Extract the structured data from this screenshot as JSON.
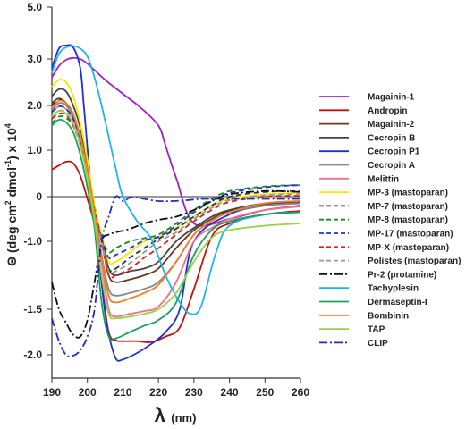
{
  "chart_data": {
    "type": "line",
    "xlabel_symbol": "λ",
    "xlabel_unit": "(nm)",
    "ylabel_base": "Θ (deg cm",
    "ylabel_sup1": "2",
    "ylabel_mid": " dmol",
    "ylabel_sup2": "-1",
    "ylabel_tail": ") x 10",
    "ylabel_sup3": "4",
    "xlim": [
      190,
      260
    ],
    "x_ticks": [
      190,
      200,
      210,
      220,
      230,
      240,
      250,
      260
    ],
    "y_ticks": [
      {
        "label": "5.0",
        "value": 5.0
      },
      {
        "label": "3.0",
        "value": 3.0
      },
      {
        "label": "2.0",
        "value": 2.0
      },
      {
        "label": "1.0",
        "value": 1.0
      },
      {
        "label": "0",
        "value": 0
      },
      {
        "label": "-1.0",
        "value": -1.0
      },
      {
        "label": "-1.5",
        "value": -1.5
      },
      {
        "label": "-2.0",
        "value": -2.0
      }
    ],
    "series": [
      {
        "name": "Magainin-1",
        "color": "#a020c8",
        "dash": "solid",
        "x": [
          190,
          192,
          194,
          196,
          198,
          200,
          205,
          210,
          215,
          220,
          222,
          225,
          230,
          240,
          250,
          260
        ],
        "y": [
          2.6,
          2.85,
          2.98,
          3.04,
          3.0,
          2.9,
          2.55,
          2.25,
          1.95,
          1.55,
          1.1,
          0.4,
          -0.6,
          -0.5,
          -0.3,
          -0.2
        ]
      },
      {
        "name": "Andropin",
        "color": "#c01010",
        "dash": "solid",
        "x": [
          190,
          192,
          194,
          196,
          198,
          200,
          202,
          204,
          206,
          208,
          210,
          214,
          218,
          222,
          226,
          230,
          235,
          240,
          250,
          260
        ],
        "y": [
          0.58,
          0.67,
          0.75,
          0.72,
          0.45,
          -0.05,
          -0.65,
          -1.3,
          -1.75,
          -1.84,
          -1.85,
          -1.85,
          -1.86,
          -1.8,
          -1.7,
          -1.35,
          -0.9,
          -0.6,
          -0.4,
          -0.32
        ]
      },
      {
        "name": "Magainin-2",
        "color": "#6b3a1e",
        "dash": "solid",
        "x": [
          190,
          192,
          194,
          196,
          198,
          200,
          202,
          204,
          206,
          208,
          212,
          216,
          220,
          225,
          230,
          235,
          240,
          250,
          260
        ],
        "y": [
          2.05,
          2.15,
          2.05,
          1.8,
          1.3,
          0.6,
          -0.3,
          -1.0,
          -1.25,
          -1.3,
          -1.28,
          -1.25,
          -1.2,
          -1.05,
          -0.75,
          -0.5,
          -0.32,
          -0.18,
          -0.12
        ]
      },
      {
        "name": "Cecropin B",
        "color": "#444444",
        "dash": "solid",
        "x": [
          190,
          192,
          194,
          196,
          198,
          200,
          202,
          204,
          206,
          208,
          212,
          216,
          220,
          225,
          230,
          235,
          240,
          250,
          260
        ],
        "y": [
          2.2,
          2.35,
          2.3,
          2.0,
          1.5,
          0.7,
          -0.2,
          -0.9,
          -1.2,
          -1.25,
          -1.22,
          -1.2,
          -1.15,
          -1.0,
          -0.7,
          -0.45,
          -0.3,
          -0.15,
          -0.1
        ]
      },
      {
        "name": "Cecropin P1",
        "color": "#1f2fd0",
        "dash": "solid",
        "x": [
          190,
          192,
          194,
          196,
          198,
          199,
          200,
          201,
          202,
          203,
          204,
          205,
          206,
          208,
          210,
          214,
          218,
          222,
          226,
          230,
          240,
          250,
          260
        ],
        "y": [
          2.8,
          3.4,
          3.52,
          3.45,
          2.8,
          2.0,
          1.05,
          0.2,
          -0.5,
          -1.0,
          -1.3,
          -1.55,
          -1.78,
          -2.08,
          -2.1,
          -1.98,
          -1.88,
          -1.75,
          -1.5,
          -1.0,
          -0.4,
          -0.2,
          -0.15
        ]
      },
      {
        "name": "Cecropin A",
        "color": "#888888",
        "dash": "solid",
        "x": [
          190,
          192,
          194,
          196,
          198,
          200,
          202,
          204,
          206,
          208,
          212,
          216,
          220,
          225,
          230,
          235,
          240,
          250,
          260
        ],
        "y": [
          1.9,
          2.05,
          2.0,
          1.75,
          1.25,
          0.55,
          -0.4,
          -1.1,
          -1.35,
          -1.4,
          -1.38,
          -1.35,
          -1.3,
          -1.15,
          -0.85,
          -0.55,
          -0.35,
          -0.2,
          -0.15
        ]
      },
      {
        "name": "Melittin",
        "color": "#f0708a",
        "dash": "solid",
        "x": [
          190,
          192,
          194,
          196,
          198,
          200,
          202,
          204,
          206,
          208,
          212,
          216,
          220,
          225,
          230,
          235,
          240,
          250,
          260
        ],
        "y": [
          1.85,
          1.98,
          1.92,
          1.7,
          1.2,
          0.5,
          -0.45,
          -1.15,
          -1.5,
          -1.58,
          -1.55,
          -1.52,
          -1.48,
          -1.3,
          -1.0,
          -0.7,
          -0.5,
          -0.3,
          -0.22
        ]
      },
      {
        "name": "MP-3 (mastoparan)",
        "color": "#f2ea00",
        "dash": "solid",
        "x": [
          190,
          192,
          194,
          196,
          198,
          200,
          202,
          204,
          206,
          208,
          212,
          216,
          220,
          225,
          230,
          235,
          240,
          250,
          260
        ],
        "y": [
          2.4,
          2.55,
          2.5,
          2.2,
          1.6,
          0.8,
          -0.2,
          -0.85,
          -1.15,
          -1.15,
          -1.08,
          -1.0,
          -0.9,
          -0.7,
          -0.45,
          -0.2,
          -0.05,
          0.05,
          0.08
        ]
      },
      {
        "name": "MP-7 (mastoparan)",
        "color": "#333333",
        "dash": "dashed",
        "x": [
          190,
          192,
          194,
          196,
          198,
          200,
          202,
          204,
          206,
          208,
          212,
          216,
          220,
          225,
          230,
          235,
          240,
          250,
          260
        ],
        "y": [
          2.0,
          2.12,
          2.05,
          1.8,
          1.3,
          0.6,
          -0.3,
          -0.95,
          -1.2,
          -1.2,
          -1.12,
          -1.05,
          -0.95,
          -0.72,
          -0.45,
          -0.2,
          0.0,
          0.1,
          0.12
        ]
      },
      {
        "name": "MP-8 (mastoparan)",
        "color": "#1a8a1a",
        "dash": "dashed",
        "x": [
          190,
          192,
          194,
          196,
          198,
          200,
          202,
          204,
          206,
          208,
          212,
          216,
          220,
          225,
          230,
          235,
          240,
          250,
          260
        ],
        "y": [
          1.6,
          1.75,
          1.72,
          1.55,
          1.15,
          0.5,
          -0.4,
          -0.95,
          -1.08,
          -1.05,
          -1.0,
          -0.93,
          -0.85,
          -0.6,
          -0.3,
          -0.05,
          0.12,
          0.22,
          0.25
        ]
      },
      {
        "name": "MP-17 (mastoparan)",
        "color": "#2030d8",
        "dash": "dashed",
        "x": [
          190,
          192,
          194,
          196,
          198,
          200,
          202,
          204,
          206,
          208,
          212,
          216,
          220,
          225,
          230,
          235,
          240,
          250,
          260
        ],
        "y": [
          1.85,
          1.98,
          1.92,
          1.7,
          1.25,
          0.55,
          -0.35,
          -0.95,
          -1.12,
          -1.1,
          -1.05,
          -0.98,
          -0.9,
          -0.65,
          -0.35,
          -0.1,
          0.08,
          0.2,
          0.25
        ]
      },
      {
        "name": "MP-X (mastoparan)",
        "color": "#e02020",
        "dash": "dashed",
        "x": [
          190,
          192,
          194,
          196,
          198,
          200,
          202,
          204,
          206,
          208,
          212,
          216,
          220,
          225,
          230,
          235,
          240,
          250,
          260
        ],
        "y": [
          1.7,
          1.82,
          1.78,
          1.55,
          1.1,
          0.45,
          -0.4,
          -1.0,
          -1.25,
          -1.25,
          -1.2,
          -1.12,
          -1.05,
          -0.85,
          -0.55,
          -0.3,
          -0.12,
          0.0,
          0.02
        ]
      },
      {
        "name": "Polistes (mastoparan)",
        "color": "#999999",
        "dash": "dashed",
        "x": [
          190,
          192,
          194,
          196,
          198,
          200,
          202,
          204,
          206,
          208,
          212,
          216,
          220,
          225,
          230,
          235,
          240,
          250,
          260
        ],
        "y": [
          1.75,
          1.88,
          1.85,
          1.62,
          1.15,
          0.48,
          -0.4,
          -1.0,
          -1.22,
          -1.22,
          -1.16,
          -1.08,
          -1.0,
          -0.8,
          -0.5,
          -0.25,
          -0.08,
          0.03,
          0.06
        ]
      },
      {
        "name": "Pr-2 (protamine)",
        "color": "#111111",
        "dash": "dashdot",
        "x": [
          190,
          192,
          194,
          196,
          198,
          200,
          202,
          204,
          206,
          208,
          212,
          216,
          220,
          225,
          230,
          235,
          240,
          250,
          260
        ],
        "y": [
          -1.3,
          -1.5,
          -1.65,
          -1.78,
          -1.8,
          -1.62,
          -1.3,
          -1.0,
          -0.85,
          -0.8,
          -0.72,
          -0.6,
          -0.52,
          -0.45,
          -0.3,
          -0.1,
          0.05,
          0.12,
          0.1
        ]
      },
      {
        "name": "Tachyplesin",
        "color": "#22b4e6",
        "dash": "solid",
        "x": [
          190,
          192,
          194,
          196,
          198,
          200,
          202,
          204,
          206,
          208,
          210,
          214,
          218,
          222,
          226,
          229,
          232,
          236,
          240,
          250,
          260
        ],
        "y": [
          2.7,
          3.2,
          3.45,
          3.5,
          3.4,
          3.1,
          2.6,
          2.0,
          1.3,
          0.6,
          0.0,
          -0.55,
          -0.95,
          -1.25,
          -1.45,
          -1.55,
          -1.48,
          -1.1,
          -0.65,
          -0.4,
          -0.35
        ]
      },
      {
        "name": "Dermaseptin-I",
        "color": "#18a060",
        "dash": "solid",
        "x": [
          190,
          192,
          194,
          196,
          198,
          200,
          202,
          204,
          206,
          208,
          212,
          216,
          220,
          225,
          230,
          235,
          240,
          250,
          260
        ],
        "y": [
          1.55,
          1.68,
          1.62,
          1.4,
          0.9,
          0.2,
          -0.7,
          -1.45,
          -1.8,
          -1.82,
          -1.75,
          -1.68,
          -1.62,
          -1.45,
          -1.1,
          -0.75,
          -0.55,
          -0.4,
          -0.35
        ]
      },
      {
        "name": "Bombinin",
        "color": "#f07e22",
        "dash": "solid",
        "x": [
          190,
          192,
          194,
          196,
          198,
          200,
          202,
          204,
          206,
          208,
          212,
          216,
          220,
          225,
          230,
          235,
          240,
          250,
          260
        ],
        "y": [
          1.95,
          2.1,
          2.05,
          1.82,
          1.3,
          0.6,
          -0.35,
          -1.1,
          -1.4,
          -1.45,
          -1.42,
          -1.38,
          -1.32,
          -1.15,
          -0.85,
          -0.55,
          -0.35,
          -0.15,
          -0.1
        ]
      },
      {
        "name": "TAP",
        "color": "#9ad04a",
        "dash": "solid",
        "x": [
          190,
          192,
          194,
          196,
          198,
          200,
          202,
          204,
          206,
          208,
          212,
          216,
          220,
          225,
          230,
          235,
          240,
          250,
          260
        ],
        "y": [
          1.75,
          1.88,
          1.82,
          1.6,
          1.1,
          0.4,
          -0.55,
          -1.25,
          -1.55,
          -1.6,
          -1.58,
          -1.55,
          -1.5,
          -1.38,
          -1.15,
          -0.92,
          -0.75,
          -0.65,
          -0.6
        ]
      },
      {
        "name": "CLIP",
        "color": "#2028c8",
        "dash": "dashdot",
        "x": [
          190,
          192,
          194,
          196,
          198,
          200,
          202,
          204,
          206,
          208,
          210,
          212,
          214,
          216,
          218,
          220,
          224,
          228,
          232,
          236,
          240,
          250,
          260
        ],
        "y": [
          -1.6,
          -1.85,
          -2.0,
          -2.02,
          -1.95,
          -1.8,
          -1.5,
          -1.0,
          -0.45,
          0.0,
          -0.1,
          -0.02,
          -0.02,
          -0.05,
          -0.08,
          -0.1,
          -0.1,
          -0.08,
          -0.05,
          -0.05,
          -0.05,
          -0.05,
          -0.05
        ]
      }
    ]
  }
}
